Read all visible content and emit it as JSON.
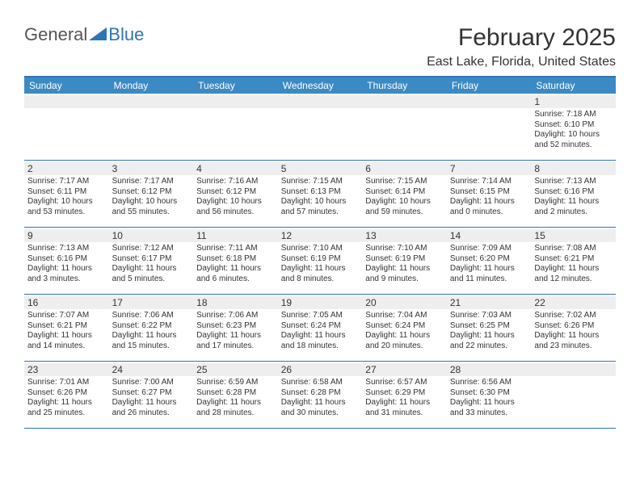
{
  "logo": {
    "general": "General",
    "blue": "Blue",
    "triangle_color": "#2e75b6"
  },
  "header": {
    "month_title": "February 2025",
    "location": "East Lake, Florida, United States"
  },
  "colors": {
    "header_bar": "#3b8ac4",
    "border": "#2e75b6",
    "num_band": "#eeeeee",
    "text": "#333333"
  },
  "day_names": [
    "Sunday",
    "Monday",
    "Tuesday",
    "Wednesday",
    "Thursday",
    "Friday",
    "Saturday"
  ],
  "weeks": [
    [
      {
        "num": "",
        "sunrise": "",
        "sunset": "",
        "daylight": ""
      },
      {
        "num": "",
        "sunrise": "",
        "sunset": "",
        "daylight": ""
      },
      {
        "num": "",
        "sunrise": "",
        "sunset": "",
        "daylight": ""
      },
      {
        "num": "",
        "sunrise": "",
        "sunset": "",
        "daylight": ""
      },
      {
        "num": "",
        "sunrise": "",
        "sunset": "",
        "daylight": ""
      },
      {
        "num": "",
        "sunrise": "",
        "sunset": "",
        "daylight": ""
      },
      {
        "num": "1",
        "sunrise": "Sunrise: 7:18 AM",
        "sunset": "Sunset: 6:10 PM",
        "daylight": "Daylight: 10 hours and 52 minutes."
      }
    ],
    [
      {
        "num": "2",
        "sunrise": "Sunrise: 7:17 AM",
        "sunset": "Sunset: 6:11 PM",
        "daylight": "Daylight: 10 hours and 53 minutes."
      },
      {
        "num": "3",
        "sunrise": "Sunrise: 7:17 AM",
        "sunset": "Sunset: 6:12 PM",
        "daylight": "Daylight: 10 hours and 55 minutes."
      },
      {
        "num": "4",
        "sunrise": "Sunrise: 7:16 AM",
        "sunset": "Sunset: 6:12 PM",
        "daylight": "Daylight: 10 hours and 56 minutes."
      },
      {
        "num": "5",
        "sunrise": "Sunrise: 7:15 AM",
        "sunset": "Sunset: 6:13 PM",
        "daylight": "Daylight: 10 hours and 57 minutes."
      },
      {
        "num": "6",
        "sunrise": "Sunrise: 7:15 AM",
        "sunset": "Sunset: 6:14 PM",
        "daylight": "Daylight: 10 hours and 59 minutes."
      },
      {
        "num": "7",
        "sunrise": "Sunrise: 7:14 AM",
        "sunset": "Sunset: 6:15 PM",
        "daylight": "Daylight: 11 hours and 0 minutes."
      },
      {
        "num": "8",
        "sunrise": "Sunrise: 7:13 AM",
        "sunset": "Sunset: 6:16 PM",
        "daylight": "Daylight: 11 hours and 2 minutes."
      }
    ],
    [
      {
        "num": "9",
        "sunrise": "Sunrise: 7:13 AM",
        "sunset": "Sunset: 6:16 PM",
        "daylight": "Daylight: 11 hours and 3 minutes."
      },
      {
        "num": "10",
        "sunrise": "Sunrise: 7:12 AM",
        "sunset": "Sunset: 6:17 PM",
        "daylight": "Daylight: 11 hours and 5 minutes."
      },
      {
        "num": "11",
        "sunrise": "Sunrise: 7:11 AM",
        "sunset": "Sunset: 6:18 PM",
        "daylight": "Daylight: 11 hours and 6 minutes."
      },
      {
        "num": "12",
        "sunrise": "Sunrise: 7:10 AM",
        "sunset": "Sunset: 6:19 PM",
        "daylight": "Daylight: 11 hours and 8 minutes."
      },
      {
        "num": "13",
        "sunrise": "Sunrise: 7:10 AM",
        "sunset": "Sunset: 6:19 PM",
        "daylight": "Daylight: 11 hours and 9 minutes."
      },
      {
        "num": "14",
        "sunrise": "Sunrise: 7:09 AM",
        "sunset": "Sunset: 6:20 PM",
        "daylight": "Daylight: 11 hours and 11 minutes."
      },
      {
        "num": "15",
        "sunrise": "Sunrise: 7:08 AM",
        "sunset": "Sunset: 6:21 PM",
        "daylight": "Daylight: 11 hours and 12 minutes."
      }
    ],
    [
      {
        "num": "16",
        "sunrise": "Sunrise: 7:07 AM",
        "sunset": "Sunset: 6:21 PM",
        "daylight": "Daylight: 11 hours and 14 minutes."
      },
      {
        "num": "17",
        "sunrise": "Sunrise: 7:06 AM",
        "sunset": "Sunset: 6:22 PM",
        "daylight": "Daylight: 11 hours and 15 minutes."
      },
      {
        "num": "18",
        "sunrise": "Sunrise: 7:06 AM",
        "sunset": "Sunset: 6:23 PM",
        "daylight": "Daylight: 11 hours and 17 minutes."
      },
      {
        "num": "19",
        "sunrise": "Sunrise: 7:05 AM",
        "sunset": "Sunset: 6:24 PM",
        "daylight": "Daylight: 11 hours and 18 minutes."
      },
      {
        "num": "20",
        "sunrise": "Sunrise: 7:04 AM",
        "sunset": "Sunset: 6:24 PM",
        "daylight": "Daylight: 11 hours and 20 minutes."
      },
      {
        "num": "21",
        "sunrise": "Sunrise: 7:03 AM",
        "sunset": "Sunset: 6:25 PM",
        "daylight": "Daylight: 11 hours and 22 minutes."
      },
      {
        "num": "22",
        "sunrise": "Sunrise: 7:02 AM",
        "sunset": "Sunset: 6:26 PM",
        "daylight": "Daylight: 11 hours and 23 minutes."
      }
    ],
    [
      {
        "num": "23",
        "sunrise": "Sunrise: 7:01 AM",
        "sunset": "Sunset: 6:26 PM",
        "daylight": "Daylight: 11 hours and 25 minutes."
      },
      {
        "num": "24",
        "sunrise": "Sunrise: 7:00 AM",
        "sunset": "Sunset: 6:27 PM",
        "daylight": "Daylight: 11 hours and 26 minutes."
      },
      {
        "num": "25",
        "sunrise": "Sunrise: 6:59 AM",
        "sunset": "Sunset: 6:28 PM",
        "daylight": "Daylight: 11 hours and 28 minutes."
      },
      {
        "num": "26",
        "sunrise": "Sunrise: 6:58 AM",
        "sunset": "Sunset: 6:28 PM",
        "daylight": "Daylight: 11 hours and 30 minutes."
      },
      {
        "num": "27",
        "sunrise": "Sunrise: 6:57 AM",
        "sunset": "Sunset: 6:29 PM",
        "daylight": "Daylight: 11 hours and 31 minutes."
      },
      {
        "num": "28",
        "sunrise": "Sunrise: 6:56 AM",
        "sunset": "Sunset: 6:30 PM",
        "daylight": "Daylight: 11 hours and 33 minutes."
      },
      {
        "num": "",
        "sunrise": "",
        "sunset": "",
        "daylight": ""
      }
    ]
  ]
}
